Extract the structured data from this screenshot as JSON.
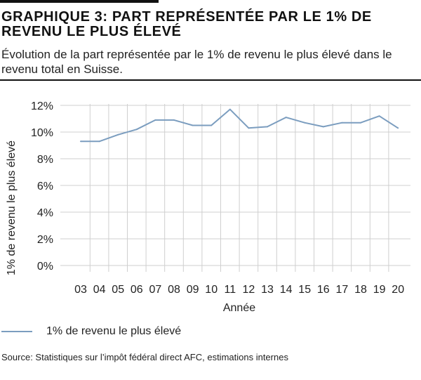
{
  "header": {
    "title": "GRAPHIQUE 3: PART REPRÉSENTÉE PAR LE 1% DE REVENU LE PLUS ÉLEVÉ",
    "subtitle": "Évolution de la part représentée par le 1% de revenu le plus élevé dans le revenu total en Suisse."
  },
  "source": "Source: Statistiques sur l’impôt fédéral direct AFC, estimations internes",
  "colors": {
    "series": "#7b9dbf",
    "grid": "#cfcfcf",
    "text": "#222222"
  },
  "chart_data": {
    "type": "line",
    "title": "",
    "xlabel": "Année",
    "ylabel": "1% de revenu le plus élevé",
    "categories": [
      "03",
      "04",
      "05",
      "06",
      "07",
      "08",
      "09",
      "10",
      "11",
      "12",
      "13",
      "14",
      "15",
      "16",
      "17",
      "18",
      "19",
      "20"
    ],
    "series": [
      {
        "name": "1% de revenu le plus élevé",
        "values": [
          9.3,
          9.3,
          9.8,
          10.2,
          10.9,
          10.9,
          10.5,
          10.5,
          11.7,
          10.3,
          10.4,
          11.1,
          10.7,
          10.4,
          10.7,
          10.7,
          11.2,
          10.3
        ]
      }
    ],
    "ylim": [
      0,
      12
    ],
    "yticks": [
      0,
      2,
      4,
      6,
      8,
      10,
      12
    ],
    "ytick_labels": [
      "0%",
      "2%",
      "4%",
      "6%",
      "8%",
      "10%",
      "12%"
    ],
    "grid": true,
    "legend": "bottom-left"
  }
}
